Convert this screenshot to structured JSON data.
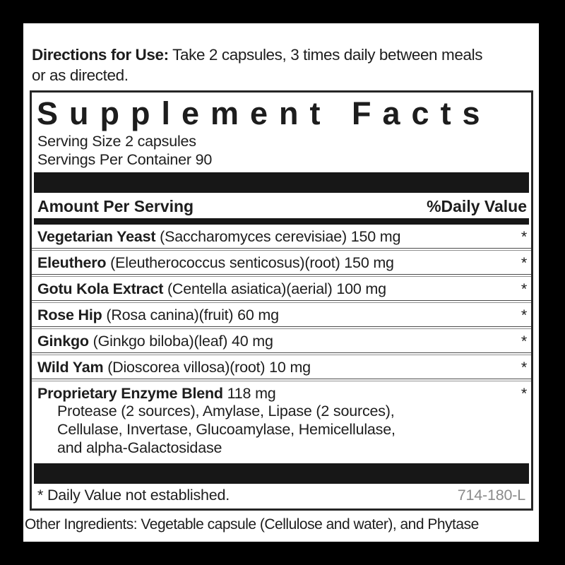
{
  "colors": {
    "frame": "#000000",
    "label_background": "#ffffff",
    "text": "#1d1d1d",
    "bar": "#171717",
    "box_border": "#262626",
    "code_gray": "#8b8b8b"
  },
  "directions": {
    "label": "Directions for Use:",
    "line1": "Take 2 capsules, 3 times daily between meals",
    "line2": "or as directed."
  },
  "panel": {
    "title": "Supplement Facts",
    "serving_size": "Serving Size 2 capsules",
    "servings_per_container": "Servings Per Container 90",
    "header": {
      "amount": "Amount Per Serving",
      "daily_value": "%Daily Value"
    },
    "rows": [
      {
        "name": "Vegetarian Yeast",
        "rest": "(Saccharomyces cerevisiae) 150 mg",
        "dv": "*"
      },
      {
        "name": "Eleuthero",
        "rest": "(Eleutherococcus senticosus)(root) 150 mg",
        "dv": "*"
      },
      {
        "name": "Gotu Kola Extract",
        "rest": "(Centella asiatica)(aerial) 100 mg",
        "dv": "*"
      },
      {
        "name": "Rose Hip",
        "rest": "(Rosa canina)(fruit) 60 mg",
        "dv": "*"
      },
      {
        "name": "Ginkgo",
        "rest": "(Ginkgo biloba)(leaf) 40 mg",
        "dv": "*"
      },
      {
        "name": "Wild Yam",
        "rest": "(Dioscorea villosa)(root) 10 mg",
        "dv": "*"
      }
    ],
    "blend": {
      "name": "Proprietary Enzyme Blend",
      "rest": "118 mg",
      "dv": "*",
      "lines": [
        "Protease (2 sources), Amylase, Lipase (2 sources),",
        "Cellulase, Invertase, Glucoamylase, Hemicellulase,",
        "and alpha-Galactosidase"
      ]
    },
    "footnote": "* Daily Value not established.",
    "code": "714-180-L"
  },
  "other_ingredients": "Other Ingredients: Vegetable capsule (Cellulose and water), and Phytase"
}
